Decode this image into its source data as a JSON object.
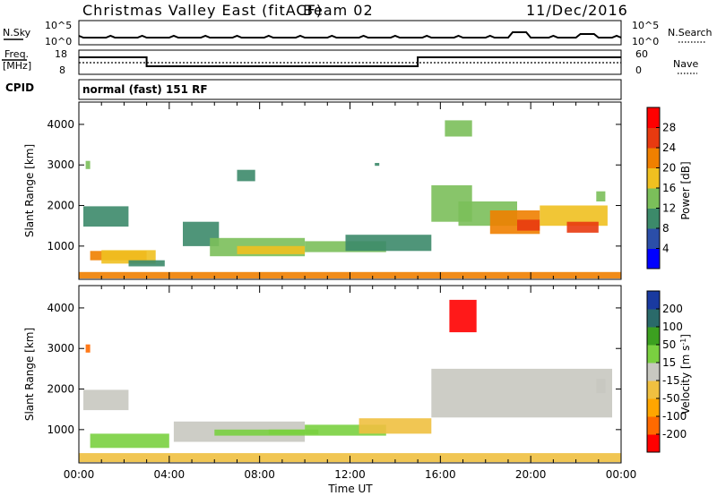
{
  "header": {
    "title": "Christmas Valley East (fitACF)",
    "beam": "Beam 02",
    "date": "11/Dec/2016"
  },
  "strips": {
    "nsky": {
      "label": "N.Sky",
      "ticks": [
        "10^5",
        "10^0"
      ]
    },
    "nsearch": {
      "label": "N.Search",
      "ticks": [
        "10^5",
        "10^0"
      ]
    },
    "freq": {
      "label_line1": "Freq.",
      "label_line2": "[MHz]",
      "ticks": [
        "18",
        "8"
      ]
    },
    "nave": {
      "label": "Nave",
      "ticks": [
        "60",
        "0"
      ]
    },
    "cpid": {
      "label": "CPID",
      "value": "normal (fast) 151 RF"
    }
  },
  "colors": {
    "power_scale": [
      "#0000ff",
      "#2b4ea8",
      "#3c8a6a",
      "#7bbf5a",
      "#f0c020",
      "#f08000",
      "#e83a10",
      "#ff0000"
    ],
    "velocity_scale": [
      "#ff0000",
      "#ff6a00",
      "#ffa600",
      "#f0c040",
      "#c8c8c0",
      "#7ad040",
      "#3ca020",
      "#2a6a6a",
      "#1a3aa0"
    ]
  },
  "chart_data": [
    {
      "type": "heatmap",
      "name": "power",
      "ylabel": "Slant Range [km]",
      "ylim": [
        180,
        4550
      ],
      "yticks": [
        "1000",
        "2000",
        "3000",
        "4000"
      ],
      "xlim_hours": [
        0,
        24
      ],
      "colorbar": {
        "label": "Power [dB]",
        "ticks": [
          "4",
          "8",
          "12",
          "16",
          "20",
          "24",
          "28"
        ],
        "range": [
          0,
          32
        ]
      },
      "cells": [
        [
          0.2,
          2.2,
          1480,
          1980,
          11
        ],
        [
          0.5,
          3.0,
          650,
          880,
          20
        ],
        [
          1.0,
          3.4,
          570,
          900,
          17
        ],
        [
          2.2,
          3.8,
          500,
          650,
          9
        ],
        [
          4.6,
          6.2,
          1000,
          1600,
          9
        ],
        [
          5.8,
          10.0,
          750,
          1200,
          14
        ],
        [
          7.0,
          10.0,
          800,
          1000,
          18
        ],
        [
          10.0,
          13.6,
          850,
          1120,
          13
        ],
        [
          11.8,
          15.6,
          880,
          1280,
          11
        ],
        [
          15.6,
          17.4,
          1600,
          2500,
          12
        ],
        [
          16.8,
          19.4,
          1500,
          2100,
          15
        ],
        [
          18.2,
          20.4,
          1300,
          1880,
          20
        ],
        [
          19.4,
          20.4,
          1380,
          1650,
          27
        ],
        [
          20.4,
          23.4,
          1500,
          2000,
          16
        ],
        [
          21.6,
          23.0,
          1330,
          1600,
          25
        ],
        [
          16.2,
          17.4,
          3700,
          4100,
          14
        ],
        [
          0.0,
          24.0,
          200,
          360,
          22
        ],
        [
          0.3,
          0.5,
          2900,
          3100,
          14
        ],
        [
          7.0,
          7.8,
          2600,
          2880,
          11
        ],
        [
          13.1,
          13.3,
          2980,
          3050,
          9
        ],
        [
          22.9,
          23.3,
          2100,
          2350,
          14
        ]
      ]
    },
    {
      "type": "heatmap",
      "name": "velocity",
      "ylabel": "Slant Range [km]",
      "ylim": [
        180,
        4550
      ],
      "yticks": [
        "1000",
        "2000",
        "3000",
        "4000"
      ],
      "xlabel": "Time UT",
      "xticks": [
        "00:00",
        "04:00",
        "08:00",
        "12:00",
        "16:00",
        "20:00",
        "00:00"
      ],
      "xlim_hours": [
        0,
        24
      ],
      "colorbar": {
        "label": "Velocity [m s^-1]",
        "ticks": [
          "200",
          "100",
          "50",
          "15",
          "-15",
          "-50",
          "-100",
          "-200"
        ]
      },
      "cells": [
        [
          0.2,
          2.2,
          1480,
          1980,
          0
        ],
        [
          0.5,
          4.0,
          550,
          900,
          40
        ],
        [
          4.2,
          10.0,
          700,
          1200,
          0
        ],
        [
          6.0,
          10.0,
          850,
          1000,
          40
        ],
        [
          10.0,
          13.6,
          850,
          1120,
          30
        ],
        [
          12.4,
          15.6,
          900,
          1280,
          -45
        ],
        [
          15.6,
          23.6,
          1300,
          2500,
          0
        ],
        [
          16.4,
          17.6,
          3400,
          4200,
          -210
        ],
        [
          0.0,
          24.0,
          200,
          420,
          -40
        ],
        [
          0.3,
          0.5,
          2900,
          3100,
          -150
        ],
        [
          8.4,
          10.6,
          880,
          1000,
          45
        ],
        [
          22.9,
          23.3,
          1900,
          2250,
          0
        ]
      ]
    }
  ]
}
